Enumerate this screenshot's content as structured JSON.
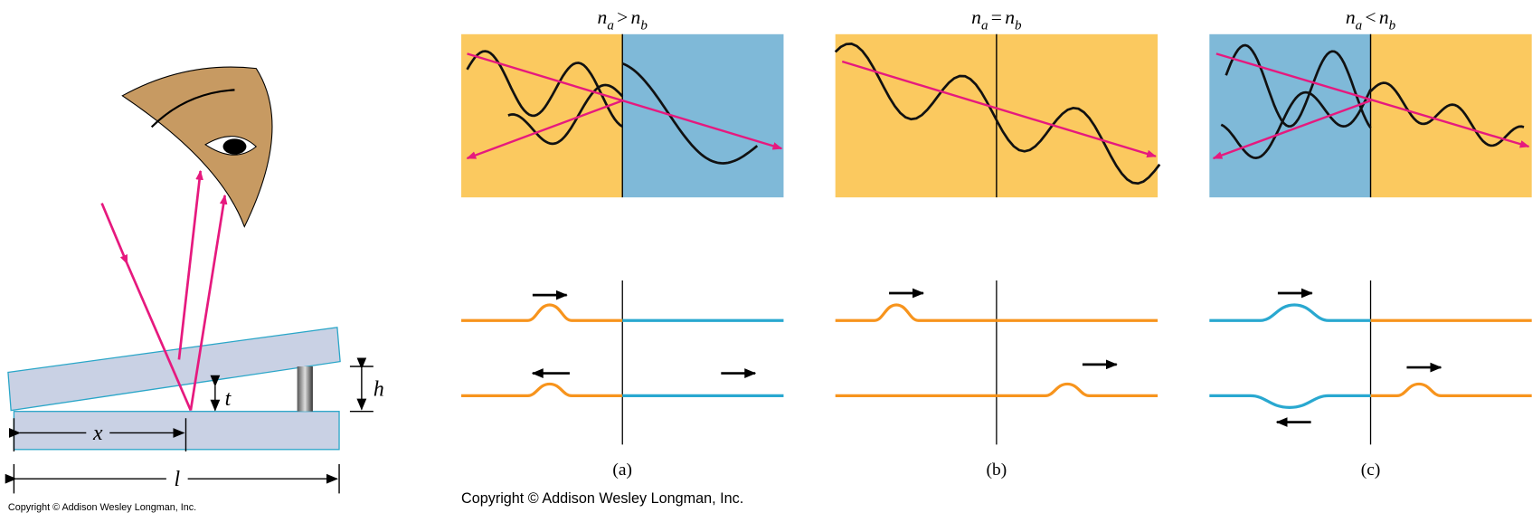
{
  "left_figure": {
    "labels": {
      "x": "x",
      "l": "l",
      "t": "t",
      "h": "h"
    },
    "copyright": "Copyright © Addison Wesley Longman, Inc."
  },
  "panels": [
    {
      "title": {
        "lhs": "n",
        "lhs_sub": "a",
        "relation": ">",
        "rhs": "n",
        "rhs_sub": "b"
      },
      "caption": "(a)"
    },
    {
      "title": {
        "lhs": "n",
        "lhs_sub": "a",
        "relation": "=",
        "rhs": "n",
        "rhs_sub": "b"
      },
      "caption": "(b)"
    },
    {
      "title": {
        "lhs": "n",
        "lhs_sub": "a",
        "relation": "<",
        "rhs": "n",
        "rhs_sub": "b"
      },
      "caption": "(c)"
    }
  ],
  "copyright": "Copyright © Addison Wesley Longman, Inc."
}
